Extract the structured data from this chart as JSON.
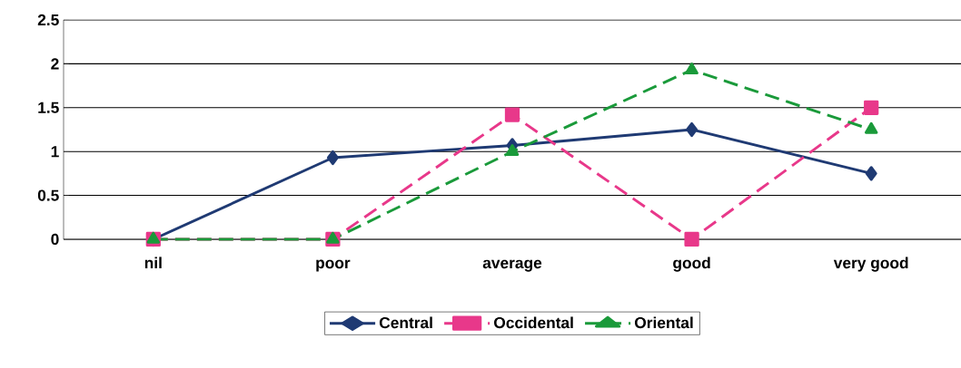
{
  "chart_data": {
    "type": "line",
    "categories": [
      "nil",
      "poor",
      "average",
      "good",
      "very good"
    ],
    "series": [
      {
        "name": "Central",
        "color": "#1f3a73",
        "values": [
          0,
          0.93,
          1.07,
          1.25,
          0.75
        ],
        "marker": "diamond",
        "line_style": "solid"
      },
      {
        "name": "Occidental",
        "color": "#e8388a",
        "values": [
          0,
          0,
          1.42,
          0,
          1.5
        ],
        "marker": "square",
        "line_style": "dashed"
      },
      {
        "name": "Oriental",
        "color": "#1a9a3a",
        "values": [
          0,
          0,
          1.0,
          1.93,
          1.25
        ],
        "marker": "triangle",
        "line_style": "dashed"
      }
    ],
    "ylim": [
      0,
      2.5
    ],
    "yticks": [
      0,
      0.5,
      1,
      1.5,
      2,
      2.5
    ],
    "grid": "y",
    "legend": "bottom"
  }
}
